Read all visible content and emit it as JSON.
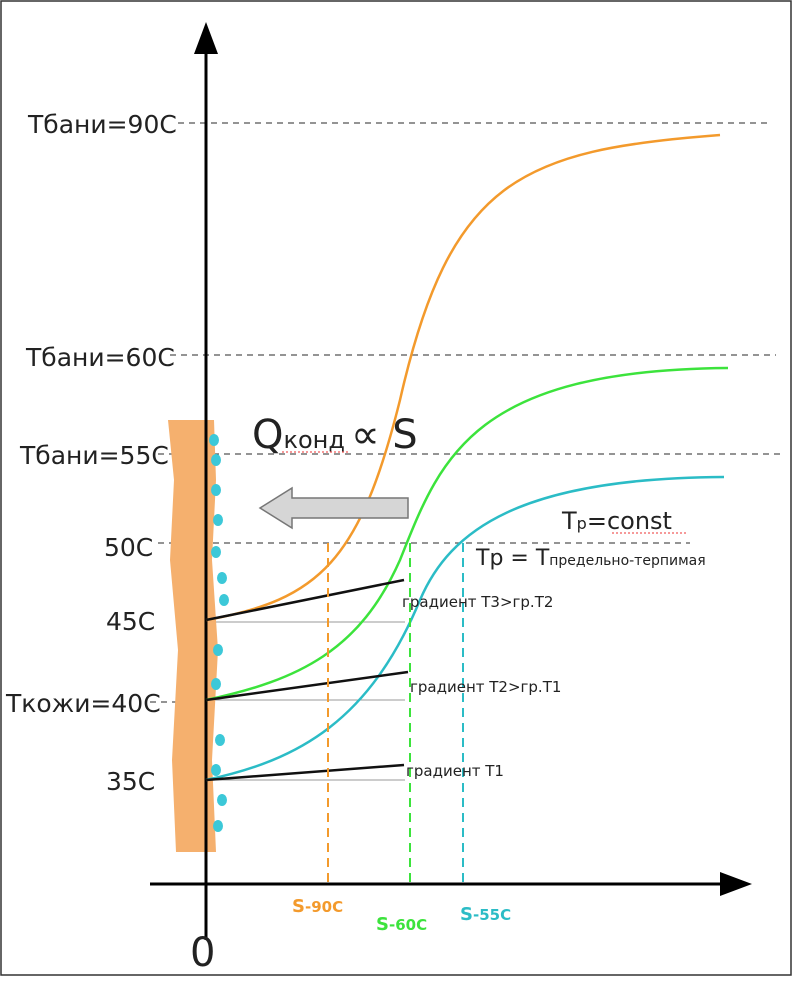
{
  "colors": {
    "bath90": "#F39A2C",
    "bath60": "#3CE33C",
    "bath55": "#2BBCC6",
    "skin": "#F5B06E",
    "droplet": "#3CC8D8",
    "axis": "#000000",
    "dashed": "#555555",
    "arrow_fill": "#D6D6D6"
  },
  "y_labels": {
    "t_bath_90": "Tбани=90С",
    "t_bath_60": "Tбани=60С",
    "t_bath_55": "Tбани=55С",
    "t_50": "50С",
    "t_45": "45С",
    "t_skin_40": "Tкожи=40С",
    "t_35": "35С"
  },
  "formula": {
    "q": "Q",
    "q_sub": "конд",
    "rest": "∝ S"
  },
  "annotations": {
    "tp_const_main": "T",
    "tp_const_sub": "p",
    "tp_const_rest": "=const",
    "tp_limit_main": "Tp = T",
    "tp_limit_sub": "предельно-терпимая",
    "gradient_t3": "градиент Т3>гр.Т2",
    "gradient_t2": "градиент Т2>гр.Т1",
    "gradient_t1": "градиент Т1"
  },
  "x_labels": {
    "s90_main": "S",
    "s90_sub": "-90С",
    "s60_main": "S",
    "s60_sub": "-60С",
    "s55_main": "S",
    "s55_sub": "-55С",
    "origin": "0"
  },
  "chart_data": {
    "type": "line",
    "y_unit": "°C",
    "series": [
      {
        "name": "Tбани=90С",
        "start_temp": 45,
        "end_temp": 90,
        "reach_50_at": "S-90С"
      },
      {
        "name": "Tбани=60С",
        "start_temp": 40,
        "end_temp": 60,
        "reach_50_at": "S-60С"
      },
      {
        "name": "Tбани=55С",
        "start_temp": 35,
        "end_temp": 55,
        "reach_50_at": "S-55С"
      }
    ],
    "threshold_temp": 50
  }
}
